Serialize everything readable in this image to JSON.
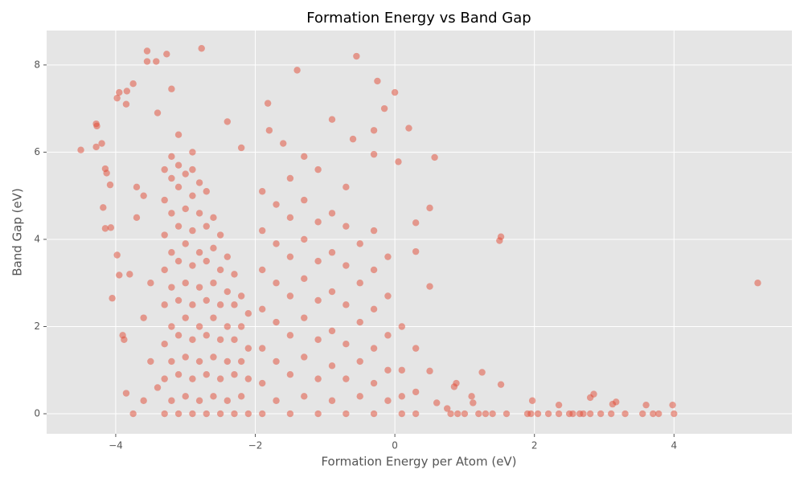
{
  "chart_data": {
    "type": "scatter",
    "title": "Formation Energy vs Band Gap",
    "xlabel": "Formation Energy per Atom (eV)",
    "ylabel": "Band Gap (eV)",
    "xlim": [
      -4.99,
      5.69
    ],
    "ylim": [
      -0.46,
      8.79
    ],
    "xticks": [
      {
        "value": -4,
        "label": "−4"
      },
      {
        "value": -2,
        "label": "−2"
      },
      0,
      2,
      4
    ],
    "yticks": [
      0,
      2,
      4,
      6,
      8
    ],
    "grid": true,
    "color": "#E24A33",
    "opacity": 0.5,
    "x": [
      -4.5,
      -4.28,
      -4.27,
      -4.28,
      -4.2,
      -4.15,
      -4.13,
      -4.08,
      -4.18,
      -4.15,
      -4.07,
      -4.05,
      -3.98,
      -3.95,
      -3.9,
      -3.88,
      -3.85,
      -3.75,
      -3.98,
      -3.95,
      -3.85,
      -3.84,
      -3.75,
      -3.55,
      -3.55,
      -3.42,
      -3.27,
      -2.77,
      -0.55,
      -1.4,
      -0.25,
      0,
      -1.82,
      0.2,
      0.57,
      0.05,
      0.5,
      1.52,
      1.5,
      5.2,
      0.3,
      0.3,
      0.5,
      0.5,
      0.6,
      0.75,
      0.85,
      0.88,
      1.25,
      1.52,
      1.1,
      1.12,
      1.97,
      2.35,
      2.8,
      2.85,
      3.12,
      3.17,
      3.6,
      3.98,
      0.8,
      0.9,
      1.0,
      1.2,
      1.3,
      1.4,
      1.6,
      1.9,
      1.95,
      2.05,
      2.2,
      2.35,
      2.5,
      2.55,
      2.65,
      2.7,
      2.8,
      2.95,
      3.1,
      3.3,
      3.55,
      3.7,
      3.78,
      4.0,
      -3.3,
      -3.3,
      -3.3,
      -3.3,
      -3.3,
      -3.3,
      -3.3,
      -3.3,
      -3.2,
      -3.2,
      -3.2,
      -3.2,
      -3.2,
      -3.2,
      -3.2,
      -3.2,
      -3.1,
      -3.1,
      -3.1,
      -3.1,
      -3.1,
      -3.1,
      -3.1,
      -3.1,
      -3.0,
      -3.0,
      -3.0,
      -3.0,
      -3.0,
      -3.0,
      -3.0,
      -2.9,
      -2.9,
      -2.9,
      -2.9,
      -2.9,
      -2.9,
      -2.9,
      -2.9,
      -2.8,
      -2.8,
      -2.8,
      -2.8,
      -2.8,
      -2.8,
      -2.8,
      -2.7,
      -2.7,
      -2.7,
      -2.7,
      -2.7,
      -2.7,
      -2.7,
      -2.6,
      -2.6,
      -2.6,
      -2.6,
      -2.6,
      -2.6,
      -2.5,
      -2.5,
      -2.5,
      -2.5,
      -2.5,
      -2.5,
      -2.4,
      -2.4,
      -2.4,
      -2.4,
      -2.4,
      -2.3,
      -2.3,
      -2.3,
      -2.3,
      -2.3,
      -2.2,
      -2.2,
      -2.2,
      -2.2,
      -2.1,
      -2.1,
      -2.1,
      -2.1,
      -1.9,
      -1.9,
      -1.9,
      -1.9,
      -1.9,
      -1.9,
      -1.9,
      -1.7,
      -1.7,
      -1.7,
      -1.7,
      -1.7,
      -1.7,
      -1.5,
      -1.5,
      -1.5,
      -1.5,
      -1.5,
      -1.5,
      -1.5,
      -1.3,
      -1.3,
      -1.3,
      -1.3,
      -1.3,
      -1.3,
      -1.1,
      -1.1,
      -1.1,
      -1.1,
      -1.1,
      -1.1,
      -1.1,
      -0.9,
      -0.9,
      -0.9,
      -0.9,
      -0.9,
      -0.9,
      -0.7,
      -0.7,
      -0.7,
      -0.7,
      -0.7,
      -0.7,
      -0.7,
      -0.5,
      -0.5,
      -0.5,
      -0.5,
      -0.5,
      -0.3,
      -0.3,
      -0.3,
      -0.3,
      -0.3,
      -0.3,
      -0.1,
      -0.1,
      -0.1,
      -0.1,
      -0.1,
      0.1,
      0.1,
      0.1,
      0.1,
      0.3,
      0.3,
      0.3,
      -3.7,
      -3.6,
      -3.5,
      -3.6,
      -3.5,
      -3.6,
      -3.7,
      -3.8,
      -3.4,
      -3.4,
      -3.2,
      -3.1,
      -2.9,
      -2.4,
      -2.2,
      -1.8,
      -1.6,
      -1.3,
      -0.9,
      -0.6,
      -0.3,
      -0.15,
      -0.3
    ],
    "values": [
      6.05,
      6.65,
      6.6,
      6.12,
      6.2,
      5.62,
      5.52,
      5.25,
      4.73,
      4.25,
      4.27,
      2.65,
      3.64,
      3.18,
      1.8,
      1.7,
      0.47,
      0,
      7.24,
      7.37,
      7.1,
      7.4,
      7.57,
      8.32,
      8.08,
      8.08,
      8.25,
      8.38,
      8.2,
      7.88,
      7.63,
      7.37,
      7.12,
      6.55,
      5.88,
      5.78,
      4.72,
      4.06,
      3.97,
      3.0,
      4.38,
      3.72,
      2.92,
      0.98,
      0.25,
      0.12,
      0.62,
      0.7,
      0.95,
      0.67,
      0.4,
      0.25,
      0.3,
      0.2,
      0.37,
      0.45,
      0.22,
      0.27,
      0.2,
      0.2,
      0,
      0,
      0,
      0,
      0,
      0,
      0,
      0,
      0,
      0,
      0,
      0,
      0,
      0,
      0,
      0,
      0,
      0,
      0,
      0,
      0,
      0,
      0,
      0,
      0,
      0.8,
      1.6,
      2.5,
      3.3,
      4.1,
      4.9,
      5.6,
      0.3,
      1.2,
      2.0,
      2.9,
      3.7,
      4.6,
      5.4,
      5.9,
      0,
      0.9,
      1.8,
      2.6,
      3.5,
      4.3,
      5.2,
      5.7,
      0.4,
      1.3,
      2.2,
      3.0,
      3.9,
      4.7,
      5.5,
      0,
      0.8,
      1.7,
      2.5,
      3.4,
      4.2,
      5.0,
      5.6,
      0.3,
      1.2,
      2.0,
      2.9,
      3.7,
      4.6,
      5.3,
      0,
      0.9,
      1.8,
      2.6,
      3.5,
      4.3,
      5.1,
      0.4,
      1.3,
      2.2,
      3.0,
      3.8,
      4.5,
      0,
      0.8,
      1.7,
      2.5,
      3.3,
      4.1,
      0.3,
      1.2,
      2.0,
      2.8,
      3.6,
      0,
      0.9,
      1.7,
      2.5,
      3.2,
      0.4,
      1.2,
      2.0,
      2.7,
      0,
      0.8,
      1.5,
      2.3,
      0,
      0.7,
      1.5,
      2.4,
      3.3,
      4.2,
      5.1,
      0.3,
      1.2,
      2.1,
      3.0,
      3.9,
      4.8,
      0,
      0.9,
      1.8,
      2.7,
      3.6,
      4.5,
      5.4,
      0.4,
      1.3,
      2.2,
      3.1,
      4.0,
      4.9,
      0,
      0.8,
      1.7,
      2.6,
      3.5,
      4.4,
      5.6,
      0.3,
      1.1,
      1.9,
      2.8,
      3.7,
      4.6,
      0,
      0.8,
      1.6,
      2.5,
      3.4,
      4.3,
      5.2,
      0.4,
      1.2,
      2.1,
      3.0,
      3.9,
      0,
      0.7,
      1.5,
      2.4,
      3.3,
      4.2,
      0.3,
      1.0,
      1.8,
      2.7,
      3.6,
      0,
      0.4,
      1.0,
      2.0,
      0,
      0.5,
      1.5,
      4.5,
      5.0,
      3.0,
      2.2,
      1.2,
      0.3,
      5.2,
      3.2,
      0.6,
      6.9,
      7.45,
      6.4,
      6.0,
      6.7,
      6.1,
      6.5,
      6.2,
      5.9,
      6.75,
      6.3,
      6.5,
      7.0,
      5.95
    ]
  }
}
